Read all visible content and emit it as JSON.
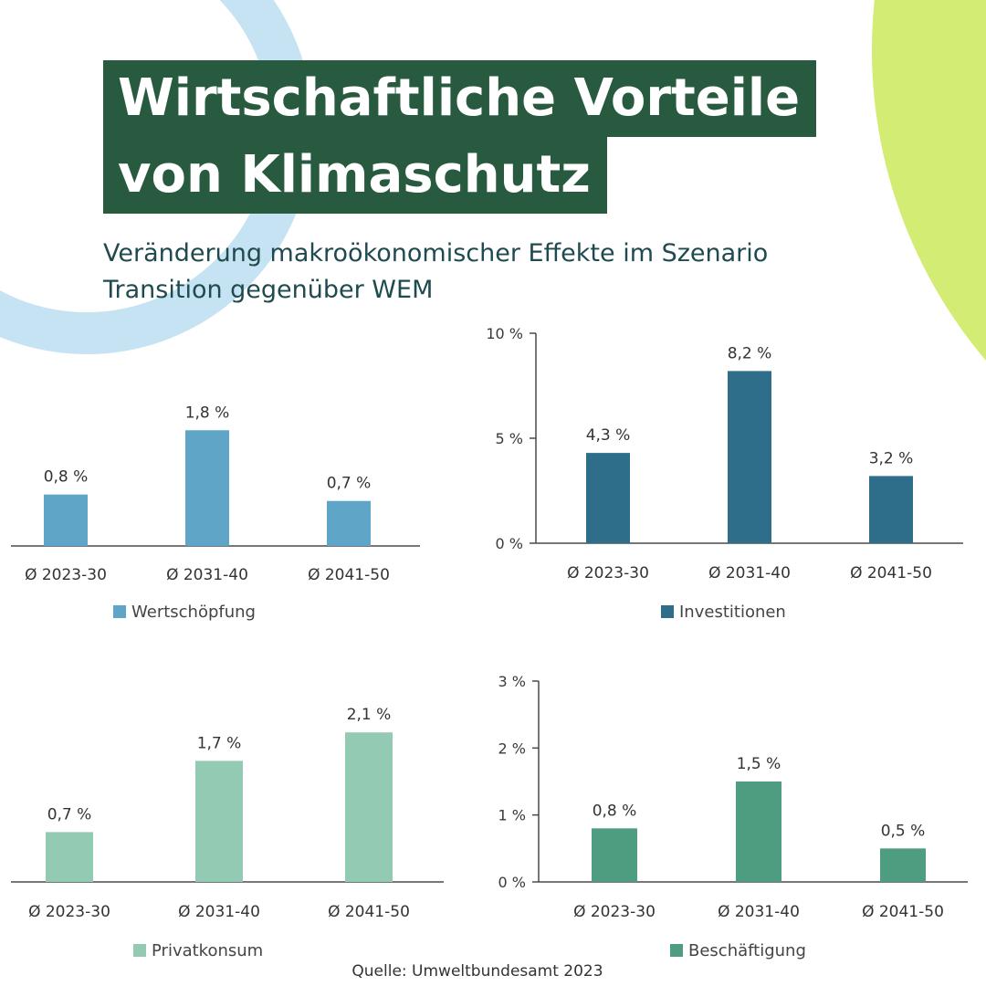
{
  "title": {
    "line1": "Wirtschaftliche Vorteile",
    "line2": "von Klimaschutz"
  },
  "subtitle": {
    "line1": "Veränderung makroökonomischer Effekte im Szenario",
    "line2": "Transition gegenüber WEM"
  },
  "source": "Quelle: Umweltbundesamt 2023",
  "colors": {
    "title_bg": "#285a3f",
    "subtitle_text": "#1f4a4f",
    "deco_blue": "#c5e3f2",
    "deco_green": "#d3ec73"
  },
  "chart_data": [
    {
      "type": "bar",
      "categories": [
        "Ø 2023-30",
        "Ø 2031-40",
        "Ø 2041-50"
      ],
      "series": [
        {
          "name": "Wertschöpfung",
          "values": [
            0.8,
            1.8,
            0.7
          ],
          "color": "#5ea5c8"
        }
      ],
      "data_labels": [
        "0,8 %",
        "1,8 %",
        "0,7 %"
      ],
      "ylim": [
        0,
        2.5
      ],
      "yticks": [],
      "legend": "bottom",
      "grid": false
    },
    {
      "type": "bar",
      "categories": [
        "Ø 2023-30",
        "Ø 2031-40",
        "Ø 2041-50"
      ],
      "series": [
        {
          "name": "Investitionen",
          "values": [
            4.3,
            8.2,
            3.2
          ],
          "color": "#2f6e8a"
        }
      ],
      "data_labels": [
        "4,3 %",
        "8,2 %",
        "3,2 %"
      ],
      "ylim": [
        0,
        10
      ],
      "yticks": [
        {
          "value": 0,
          "label": "0 %"
        },
        {
          "value": 5,
          "label": "5 %"
        },
        {
          "value": 10,
          "label": "10 %"
        }
      ],
      "legend": "bottom",
      "grid": false
    },
    {
      "type": "bar",
      "categories": [
        "Ø 2023-30",
        "Ø 2031-40",
        "Ø 2041-50"
      ],
      "series": [
        {
          "name": "Privatkonsum",
          "values": [
            0.7,
            1.7,
            2.1
          ],
          "color": "#93cab4"
        }
      ],
      "data_labels": [
        "0,7 %",
        "1,7 %",
        "2,1 %"
      ],
      "ylim": [
        0,
        2.5
      ],
      "yticks": [],
      "legend": "bottom",
      "grid": false
    },
    {
      "type": "bar",
      "categories": [
        "Ø 2023-30",
        "Ø 2031-40",
        "Ø 2041-50"
      ],
      "series": [
        {
          "name": "Beschäftigung",
          "values": [
            0.8,
            1.5,
            0.5
          ],
          "color": "#4e9d80"
        }
      ],
      "data_labels": [
        "0,8 %",
        "1,5 %",
        "0,5 %"
      ],
      "ylim": [
        0,
        3
      ],
      "yticks": [
        {
          "value": 0,
          "label": "0 %"
        },
        {
          "value": 1,
          "label": "1 %"
        },
        {
          "value": 2,
          "label": "2 %"
        },
        {
          "value": 3,
          "label": "3 %"
        }
      ],
      "legend": "bottom",
      "grid": false
    }
  ]
}
